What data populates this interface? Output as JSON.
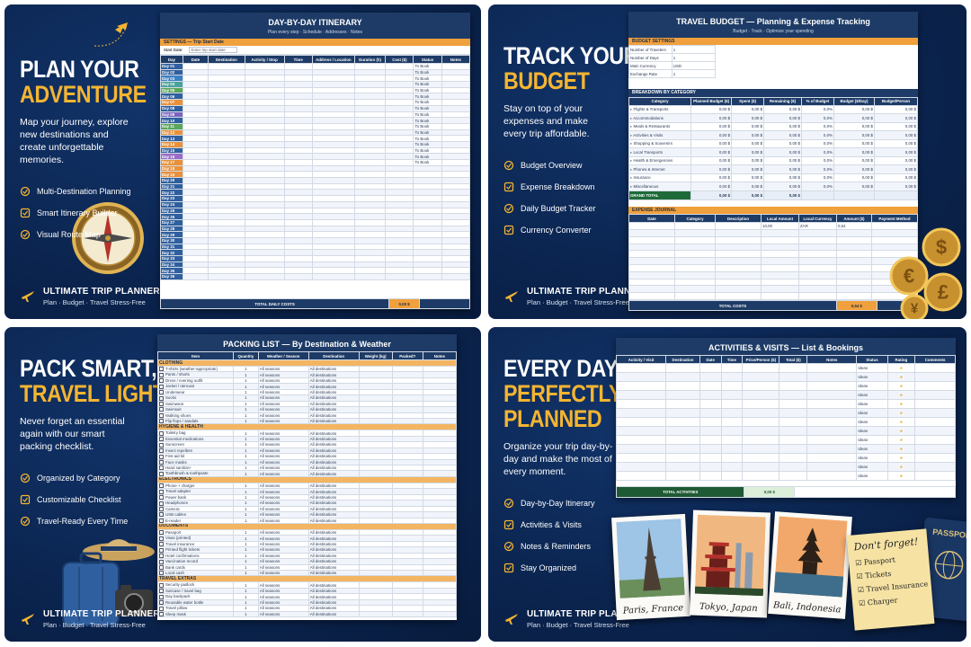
{
  "brand": "ULTIMATE TRIP PLANNER",
  "tagline": "Plan · Budget · Travel Stress-Free",
  "panels": [
    {
      "headline": {
        "lines": [
          "PLAN YOUR"
        ],
        "highlight": [
          "ADVENTURE"
        ]
      },
      "text": "Map your journey, explore new destinations and create unforgettable memories.",
      "features": [
        "Multi-Destination Planning",
        "Smart Itinerary Builder",
        "Visual Route Map"
      ]
    },
    {
      "headline": {
        "lines": [
          "TRACK YOUR"
        ],
        "highlight": [
          "BUDGET"
        ]
      },
      "text": "Stay on top of your expenses and make every trip affordable.",
      "features": [
        "Budget Overview",
        "Expense Breakdown",
        "Daily Budget Tracker",
        "Currency Converter"
      ]
    },
    {
      "headline": {
        "lines": [
          "PACK SMART,"
        ],
        "highlight": [
          "TRAVEL LIGHT"
        ]
      },
      "text": "Never forget an essential again with our smart packing checklist.",
      "features": [
        "Organized by Category",
        "Customizable Checklist",
        "Travel-Ready Every Time"
      ]
    },
    {
      "headline": {
        "lines": [
          "EVERY DAY,"
        ],
        "highlight": [
          "PERFECTLY",
          "PLANNED"
        ]
      },
      "text": "Organize your trip day-by-day and make the most of every moment.",
      "features": [
        "Day-by-Day Itinerary",
        "Activities & Visits",
        "Notes & Reminders",
        "Stay Organized"
      ]
    }
  ],
  "itinerary": {
    "title": "DAY-BY-DAY ITINERARY",
    "subtitle": "Plan every step · Schedule · Addresses · Notes",
    "settings_header": "SETTINGS — Trip Start Date",
    "start_label": "Start Date:",
    "start_placeholder": "Enter trip start date",
    "columns": [
      "Day",
      "Date",
      "Destination",
      "Activity / Stop",
      "Time",
      "Address / Location",
      "Duration (h)",
      "Cost ($)",
      "Status",
      "Notes"
    ],
    "rows": [
      {
        "day": "Day 01",
        "status": "To Book"
      },
      {
        "day": "Day 02",
        "status": "To Book"
      },
      {
        "day": "Day 03",
        "status": "To Book"
      },
      {
        "day": "Day 04",
        "status": "To Book"
      },
      {
        "day": "Day 05",
        "status": "To Book"
      },
      {
        "day": "Day 06",
        "status": "To Book"
      },
      {
        "day": "Day 07",
        "status": "To Book"
      },
      {
        "day": "Day 08",
        "status": "To Book"
      },
      {
        "day": "Day 09",
        "status": "To Book"
      },
      {
        "day": "Day 10",
        "status": "To Book"
      },
      {
        "day": "Day 11",
        "status": "To Book"
      },
      {
        "day": "Day 12",
        "status": "To Book"
      },
      {
        "day": "Day 13",
        "status": "To Book"
      },
      {
        "day": "Day 14",
        "status": "To Book"
      },
      {
        "day": "Day 15",
        "status": "To Book"
      },
      {
        "day": "Day 16",
        "status": "To Book"
      },
      {
        "day": "Day 17",
        "status": "To Book"
      },
      {
        "day": "Day 18"
      },
      {
        "day": "Day 19"
      },
      {
        "day": "Day 20"
      },
      {
        "day": "Day 21"
      },
      {
        "day": "Day 22"
      },
      {
        "day": "Day 23"
      },
      {
        "day": "Day 24"
      },
      {
        "day": "Day 25"
      },
      {
        "day": "Day 26"
      },
      {
        "day": "Day 27"
      },
      {
        "day": "Day 28"
      },
      {
        "day": "Day 29"
      },
      {
        "day": "Day 30"
      },
      {
        "day": "Day 31"
      },
      {
        "day": "Day 32"
      },
      {
        "day": "Day 33"
      },
      {
        "day": "Day 34"
      },
      {
        "day": "Day 35"
      },
      {
        "day": "Day 36"
      }
    ],
    "total_label": "TOTAL DAILY COSTS",
    "total": "0,00 $"
  },
  "budget": {
    "title": "TRAVEL BUDGET — Planning & Expense Tracking",
    "subtitle": "Budget · Track · Optimize your spending",
    "settings_header": "BUDGET SETTINGS",
    "settings": [
      [
        "Number of Travelers",
        "1"
      ],
      [
        "Number of Days",
        "1"
      ],
      [
        "Main Currency",
        "USD"
      ],
      [
        "Exchange Rate",
        "1"
      ]
    ],
    "breakdown_header": "BREAKDOWN BY CATEGORY",
    "columns": [
      "Category",
      "Planned Budget ($)",
      "Spent ($)",
      "Remaining ($)",
      "% of Budget",
      "Budget ($/Day)",
      "Budget/Person"
    ],
    "categories": [
      {
        "name": "Flights & Transports",
        "values": [
          "0,00 $",
          "0,00 $",
          "0,00 $",
          "0,0%",
          "0,00 $",
          "0,00 $"
        ]
      },
      {
        "name": "Accommodations",
        "values": [
          "0,00 $",
          "0,00 $",
          "0,00 $",
          "0,0%",
          "0,00 $",
          "0,00 $"
        ]
      },
      {
        "name": "Meals & Restaurants",
        "values": [
          "0,00 $",
          "0,00 $",
          "0,00 $",
          "0,0%",
          "0,00 $",
          "0,00 $"
        ]
      },
      {
        "name": "Activities & Visits",
        "values": [
          "0,00 $",
          "0,00 $",
          "0,00 $",
          "0,0%",
          "0,00 $",
          "0,00 $"
        ]
      },
      {
        "name": "Shopping & Souvenirs",
        "values": [
          "0,00 $",
          "0,00 $",
          "0,00 $",
          "0,0%",
          "0,00 $",
          "0,00 $"
        ]
      },
      {
        "name": "Local Transports",
        "values": [
          "0,00 $",
          "0,00 $",
          "0,00 $",
          "0,0%",
          "0,00 $",
          "0,00 $"
        ]
      },
      {
        "name": "Health & Emergencies",
        "values": [
          "0,00 $",
          "0,00 $",
          "0,00 $",
          "0,0%",
          "0,00 $",
          "0,00 $"
        ]
      },
      {
        "name": "Phones & Internet",
        "values": [
          "0,00 $",
          "0,00 $",
          "0,00 $",
          "0,0%",
          "0,00 $",
          "0,00 $"
        ]
      },
      {
        "name": "Insurance",
        "values": [
          "0,00 $",
          "0,00 $",
          "0,00 $",
          "0,0%",
          "0,00 $",
          "0,00 $"
        ]
      },
      {
        "name": "Miscellaneous",
        "values": [
          "0,00 $",
          "0,00 $",
          "0,00 $",
          "0,0%",
          "0,00 $",
          "0,00 $"
        ]
      }
    ],
    "grand_total_label": "GRAND TOTAL",
    "grand_total": [
      "0,00 $",
      "0,00 $",
      "0,00 $"
    ],
    "journal_header": "EXPENSE JOURNAL",
    "journal_columns": [
      "Date",
      "Category",
      "Description",
      "Local Amount",
      "Local Currency",
      "Amount ($)",
      "Payment Method"
    ],
    "first_entry": {
      "local_amount": "10,00",
      "local_currency": "ZAR",
      "amount": "0,54"
    },
    "total_label": "TOTAL COSTS",
    "total": "0,54 $",
    "coins": [
      "$",
      "€",
      "£",
      "¥"
    ]
  },
  "packing": {
    "title": "PACKING LIST — By Destination & Weather",
    "columns": [
      "Item",
      "Quantity",
      "Weather / Season",
      "Destination",
      "Weight (kg)",
      "Packed?",
      "Notes"
    ],
    "quantity": "1",
    "season": "All seasons",
    "destination": "All destinations",
    "sections": [
      {
        "name": "CLOTHING",
        "items": [
          "T-shirts (weather-appropriate)",
          "Pants / shorts",
          "Dress / evening outfit",
          "Jacket / raincoat",
          "Underwear",
          "Socks",
          "Swimwear",
          "Swimsuit",
          "Walking shoes",
          "Flip flops / sandals"
        ]
      },
      {
        "name": "HYGIENE & HEALTH",
        "items": [
          "Toiletry bag",
          "Essential medications",
          "Sunscreen",
          "Insect repellent",
          "First aid kit",
          "Face masks",
          "Hand sanitizer",
          "Toothbrush & toothpaste"
        ]
      },
      {
        "name": "ELECTRONICS",
        "items": [
          "Phone + charger",
          "Travel adapter",
          "Power bank",
          "Headphones",
          "Camera",
          "USB cables",
          "E-reader"
        ]
      },
      {
        "name": "DOCUMENTS",
        "items": [
          "Passport",
          "Visas (printed)",
          "Travel insurance",
          "Printed flight tickets",
          "Hotel confirmations",
          "Vaccination record",
          "Bank cards",
          "Local cash"
        ]
      },
      {
        "name": "TRAVEL EXTRAS",
        "items": [
          "Security padlock",
          "Suitcase / travel bag",
          "Day backpack",
          "Reusable water bottle",
          "Travel pillow",
          "Sleep mask"
        ]
      }
    ]
  },
  "activities": {
    "title": "ACTIVITIES & VISITS — List & Bookings",
    "columns": [
      "Activity / Visit",
      "Destination",
      "Date",
      "Time",
      "Price/Person ($)",
      "Total ($)",
      "Notes",
      "Status",
      "Rating",
      "Comments"
    ],
    "rows": [
      {
        "status": "Ideas",
        "rating": "★"
      },
      {
        "status": "Ideas",
        "rating": "★"
      },
      {
        "status": "Ideas",
        "rating": "★"
      },
      {
        "status": "Ideas",
        "rating": "★"
      },
      {
        "status": "Ideas",
        "rating": "★"
      },
      {
        "status": "Ideas",
        "rating": "★"
      },
      {
        "status": "Ideas",
        "rating": "★"
      },
      {
        "status": "Ideas",
        "rating": "★"
      },
      {
        "status": "Ideas",
        "rating": "★"
      },
      {
        "status": "Ideas",
        "rating": "★"
      },
      {
        "status": "Ideas",
        "rating": "★"
      },
      {
        "status": "Ideas",
        "rating": "★"
      },
      {
        "status": "Ideas",
        "rating": "★"
      }
    ],
    "total_label": "TOTAL ACTIVITIES",
    "total": "0,00 $",
    "photos": [
      "Paris, France",
      "Tokyo, Japan",
      "Bali, Indonesia"
    ],
    "note_title": "Don't forget!",
    "note_items": [
      "Passport",
      "Tickets",
      "Travel Insurance",
      "Charger"
    ],
    "passport": "PASSPORT"
  }
}
